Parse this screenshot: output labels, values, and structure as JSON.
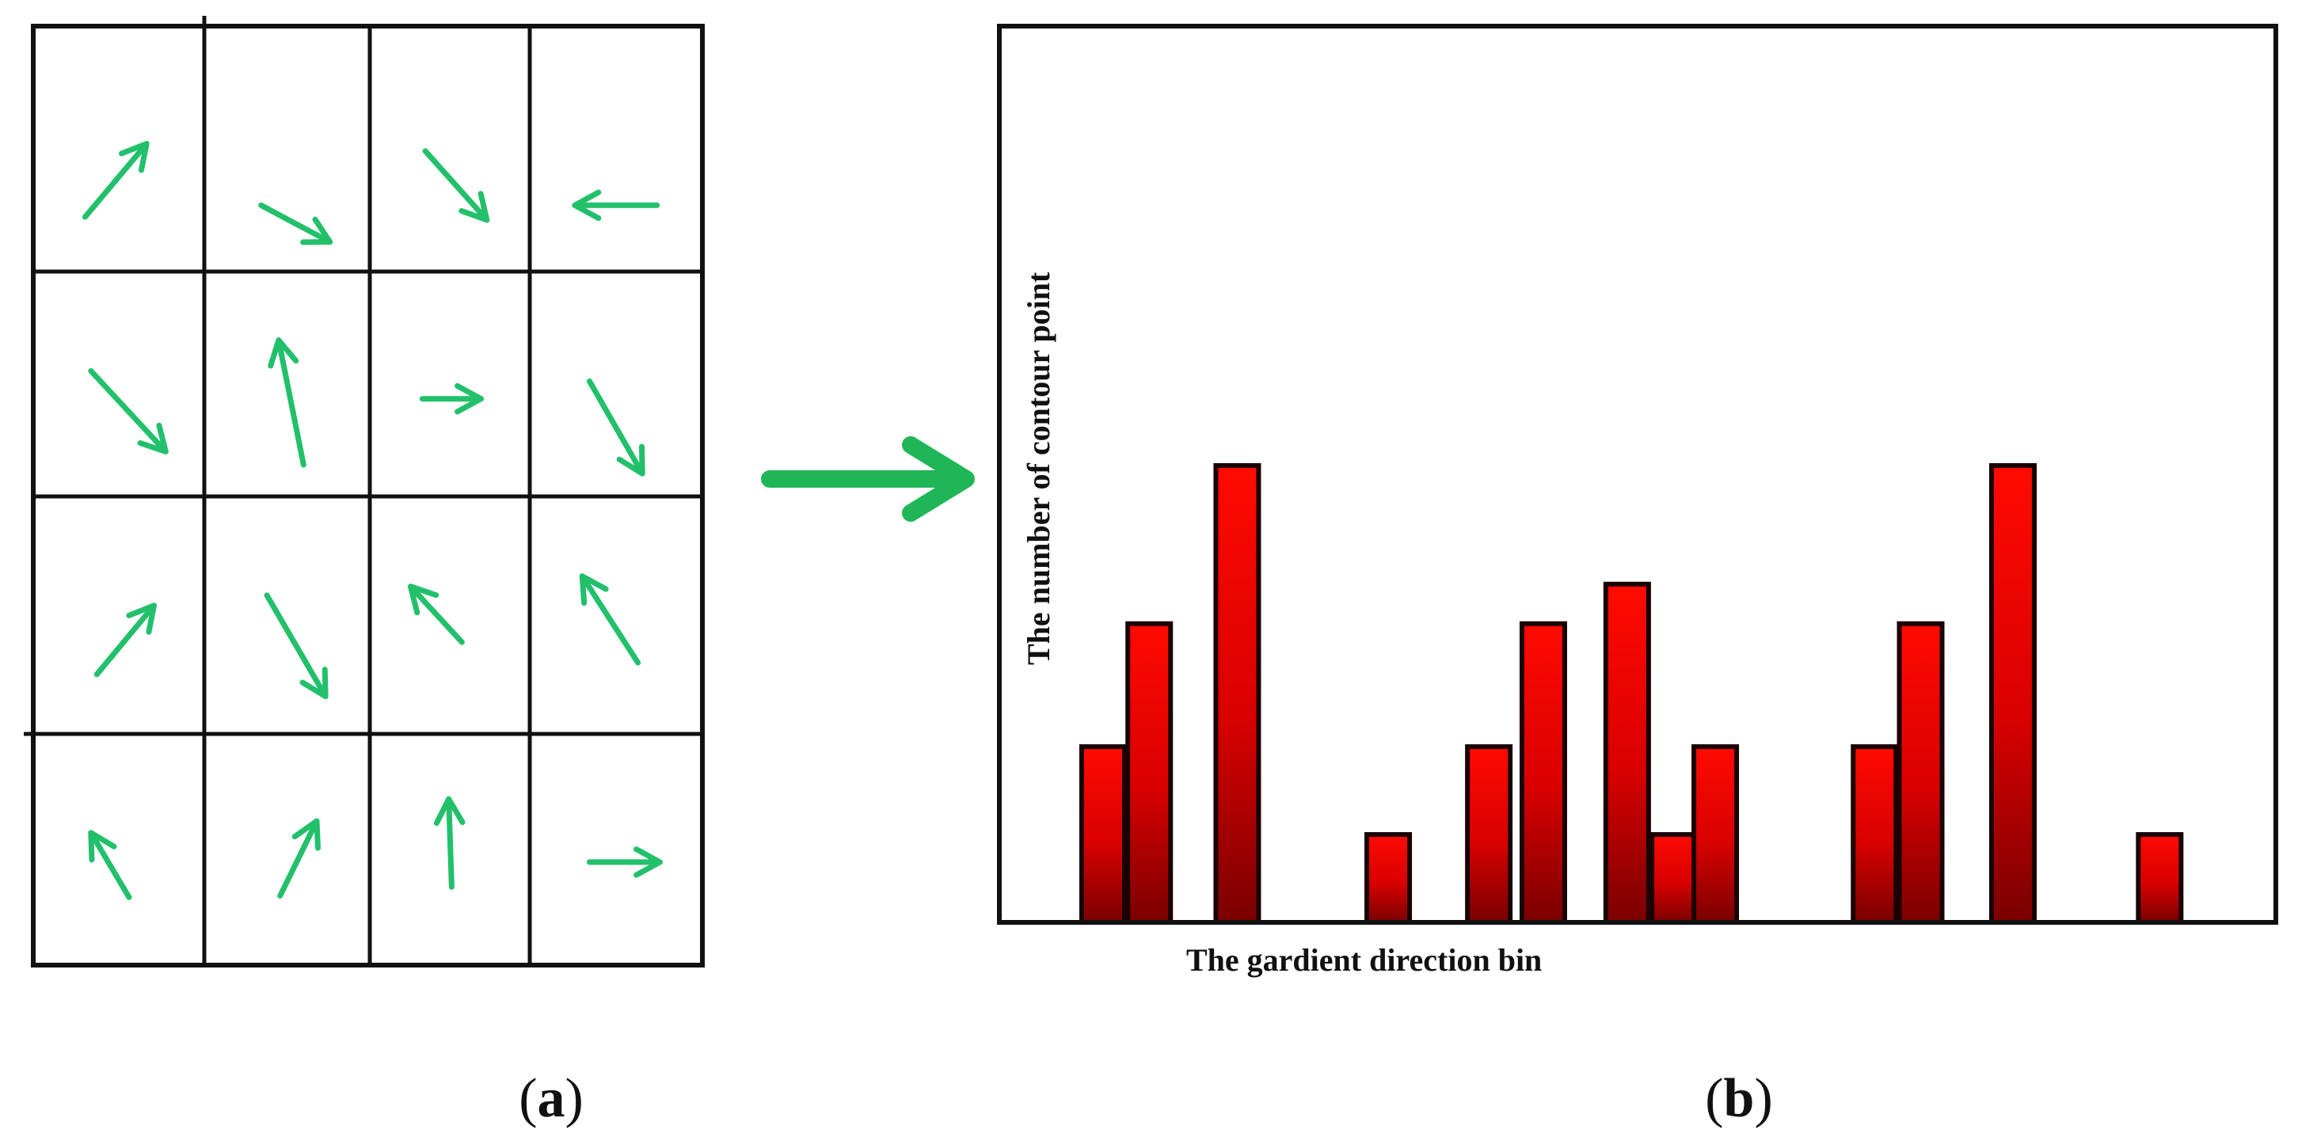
{
  "figure": {
    "left_panel": {
      "rows": 4,
      "cols": 4,
      "arrow_color": "#22c06b",
      "cell_arrows": [
        {
          "name": "up-right-arrow-icon"
        },
        {
          "name": "down-right-arrow-icon"
        },
        {
          "name": "down-right-arrow-icon"
        },
        {
          "name": "left-arrow-icon"
        },
        {
          "name": "down-right-arrow-icon"
        },
        {
          "name": "up-arrow-icon"
        },
        {
          "name": "right-arrow-icon"
        },
        {
          "name": "down-arrow-icon"
        },
        {
          "name": "up-right-arrow-icon"
        },
        {
          "name": "down-arrow-icon"
        },
        {
          "name": "up-left-arrow-icon"
        },
        {
          "name": "up-left-arrow-icon"
        },
        {
          "name": "up-left-arrow-icon"
        },
        {
          "name": "up-right-arrow-icon"
        },
        {
          "name": "up-arrow-icon"
        },
        {
          "name": "right-arrow-icon"
        }
      ]
    },
    "connector": {
      "icon": "right-arrow-icon",
      "color": "#1fb657"
    },
    "right_panel": {
      "ylabel": "The number of contour point",
      "xlabel": "The gardient direction bin"
    },
    "captions": {
      "a_open": "(",
      "a_letter": "a",
      "a_close": ")",
      "b_open": "(",
      "b_letter": "b",
      "b_close": ")"
    }
  },
  "chart_data": {
    "type": "bar",
    "title": "",
    "xlabel": "The gardient direction bin",
    "ylabel": "The number of contour point",
    "ylim": [
      0,
      5.2
    ],
    "grid": false,
    "bar_color": "#ff0000",
    "bars": [
      {
        "bin": 1.0,
        "value": 2.0
      },
      {
        "bin": 1.55,
        "value": 3.4
      },
      {
        "bin": 2.6,
        "value": 5.2
      },
      {
        "bin": 4.4,
        "value": 1.0
      },
      {
        "bin": 5.6,
        "value": 2.0
      },
      {
        "bin": 6.25,
        "value": 3.4
      },
      {
        "bin": 7.25,
        "value": 3.85
      },
      {
        "bin": 7.8,
        "value": 1.0
      },
      {
        "bin": 8.3,
        "value": 2.0
      },
      {
        "bin": 10.2,
        "value": 2.0
      },
      {
        "bin": 10.75,
        "value": 3.4
      },
      {
        "bin": 11.85,
        "value": 5.2
      },
      {
        "bin": 13.6,
        "value": 1.0
      }
    ]
  }
}
